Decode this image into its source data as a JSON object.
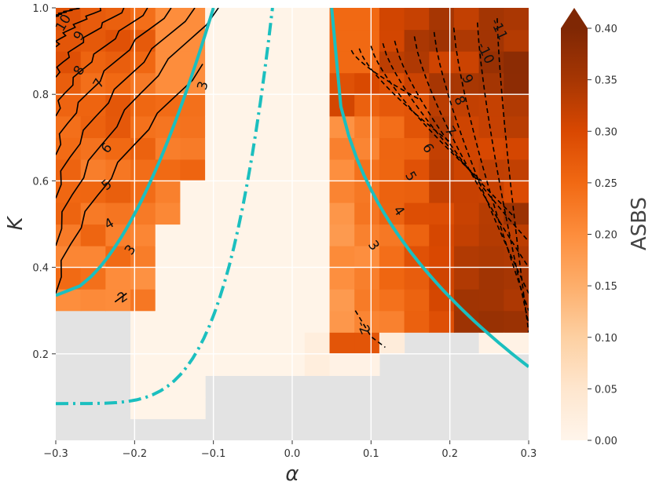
{
  "chart_data": {
    "type": "heatmap",
    "title": "",
    "xlabel": "α",
    "ylabel": "K",
    "xlim": [
      -0.3,
      0.3
    ],
    "ylim": [
      0.0,
      1.0
    ],
    "x_ticks": [
      "−0.3",
      "−0.2",
      "−0.1",
      "0.0",
      "0.1",
      "0.2",
      "0.3"
    ],
    "y_ticks": [
      "0.2",
      "0.4",
      "0.6",
      "0.8",
      "1.0"
    ],
    "grid": true,
    "colorbar": {
      "label": "ASBS",
      "range": [
        0.0,
        0.4
      ],
      "extend": "max",
      "ticks": [
        "0.00",
        "0.05",
        "0.10",
        "0.15",
        "0.20",
        "0.25",
        "0.30",
        "0.35",
        "0.40"
      ],
      "colormap": "Oranges"
    },
    "colors": {
      "missing": "#e3e3e3",
      "boundary_curve": "#1bbfbf"
    },
    "contour_labels_left": [
      "10",
      "9",
      "8",
      "7",
      "6",
      "5",
      "4",
      "3",
      "3",
      "2"
    ],
    "contour_labels_right": [
      "-11",
      "-10",
      "9",
      "8",
      "7",
      "6",
      "5",
      "4",
      "3",
      "-2"
    ]
  }
}
